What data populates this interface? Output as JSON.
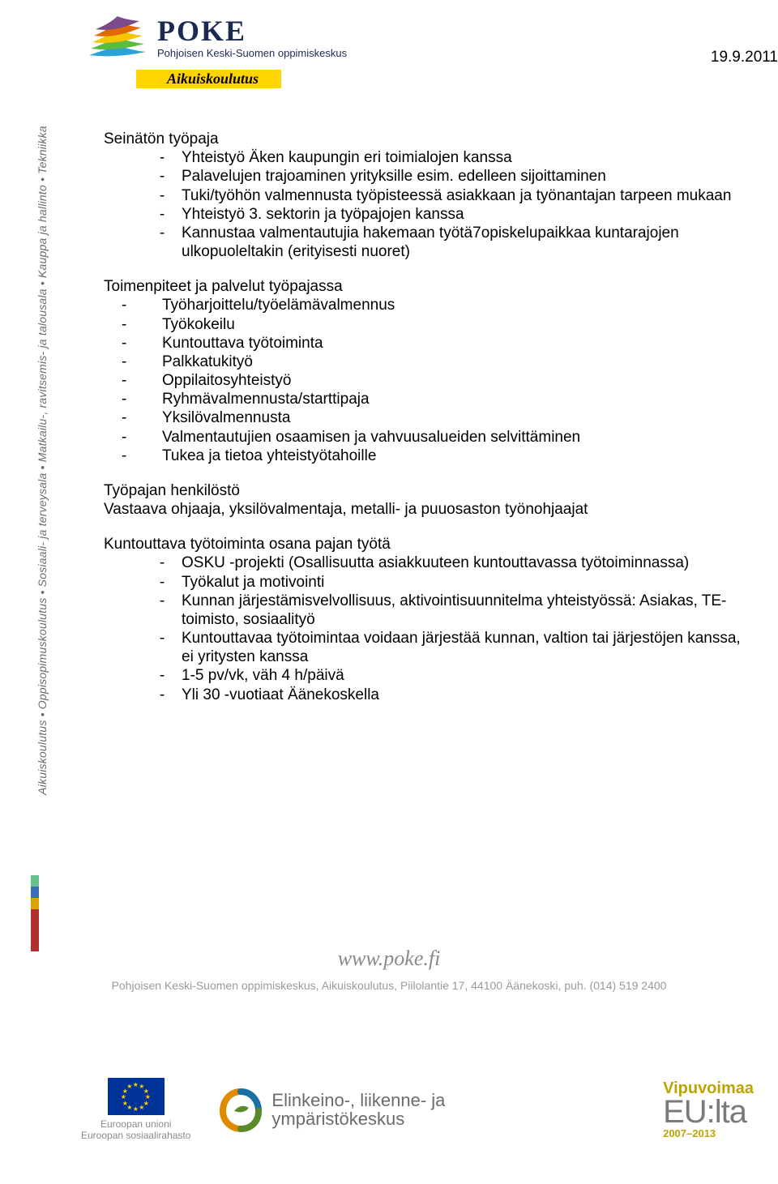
{
  "date": "19.9.2011",
  "side_text": "Aikuiskoulutus • Oppisopimuskoulutus • Sosiaali- ja terveysala • Matkailu-, ravitsemis- ja talousala • Kauppa ja hallinto • Tekniikka",
  "side_colors": [
    {
      "c": "#66c18c",
      "h": 14
    },
    {
      "c": "#3a6fb7",
      "h": 14
    },
    {
      "c": "#d9a400",
      "h": 14
    },
    {
      "c": "#b03030",
      "h": 52
    }
  ],
  "logo": {
    "title": "POKE",
    "subtitle": "Pohjoisen Keski-Suomen oppimiskeskus",
    "badge": "Aikuiskoulutus",
    "leaf_colors": [
      "#2aa3d9",
      "#5bbd3f",
      "#f7c400",
      "#e06a00",
      "#7a4a8a"
    ]
  },
  "doc": {
    "h1": "Seinätön työpaja",
    "intro_list": [
      "Yhteistyö Äken kaupungin eri toimialojen kanssa",
      "Palavelujen trajoaminen yrityksille esim. edelleen sijoittaminen",
      "Tuki/työhön valmennusta työpisteessä asiakkaan ja työnantajan tarpeen mukaan",
      "Yhteistyö 3. sektorin ja työpajojen kanssa",
      "Kannustaa valmentautujia hakemaan työtä7opiskelupaikkaa kuntarajojen ulkopuoleltakin (erityisesti nuoret)"
    ],
    "h2a": "Toimenpiteet ja palvelut työpajassa",
    "services_list": [
      "Työharjoittelu/työelämävalmennus",
      "Työkokeilu",
      "Kuntouttava työtoiminta",
      "Palkkatukityö",
      "Oppilaitosyhteistyö",
      "Ryhmävalmennusta/starttipaja",
      "Yksilövalmennusta",
      "Valmentautujien osaamisen ja vahvuusalueiden selvittäminen",
      "Tukea ja tietoa yhteistyötahoille"
    ],
    "h2b": "Työpajan henkilöstö",
    "staff_line": "Vastaava ohjaaja, yksilövalmentaja, metalli- ja puuosaston työnohjaajat",
    "h2c": "Kuntouttava työtoiminta osana pajan työtä",
    "kunt_list": [
      "OSKU -projekti  (Osallisuutta asiakkuuteen kuntouttavassa työtoiminnassa)",
      "Työkalut ja motivointi",
      "Kunnan järjestämisvelvollisuus, aktivointisuunnitelma yhteistyössä: Asiakas, TE-toimisto, sosiaalityö",
      "Kuntouttavaa työtoimintaa voidaan järjestää kunnan, valtion tai järjestöjen kanssa, ei yritysten kanssa",
      "1-5 pv/vk, väh 4 h/päivä",
      "Yli 30 -vuotiaat Äänekoskella"
    ]
  },
  "footer": {
    "www": "www.poke.fi",
    "addr": "Pohjoisen Keski-Suomen oppimiskeskus, Aikuiskoulutus, Piilolantie 17, 44100 Äänekoski, puh. (014) 519 2400"
  },
  "logos": {
    "eu1": "Euroopan unioni",
    "eu2": "Euroopan sosiaalirahasto",
    "ely1": "Elinkeino-, liikenne- ja",
    "ely2": "ympäristökeskus",
    "vipu_top": "Vipuvoimaa",
    "vipu_mid": "EU:lta",
    "vipu_bot": "2007–2013",
    "ely_colors": {
      "orange": "#e08a00",
      "blue": "#1a6fa3",
      "green": "#5a8a2a"
    }
  }
}
